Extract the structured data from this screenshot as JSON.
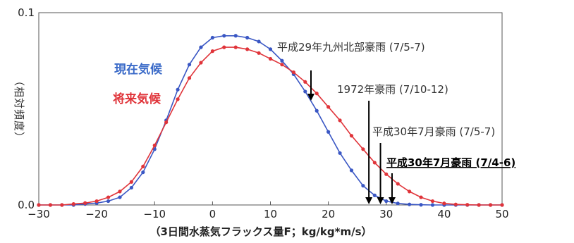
{
  "chart_data": {
    "type": "line",
    "title": "",
    "xlabel": "（3日間水蒸気フラックス量F；kg/kg*m/s）",
    "ylabel": "（相対頻度）",
    "xlim": [
      -30,
      50
    ],
    "ylim": [
      0,
      0.1
    ],
    "xticks": [
      "−30",
      "−20",
      "−10",
      "0",
      "10",
      "20",
      "30",
      "40",
      "50"
    ],
    "yticks": [
      "0.0",
      "0.1"
    ],
    "grid": false,
    "legend_position": "upper-left (inside plot)",
    "series": [
      {
        "name": "現在気候",
        "color": "#3a57c4",
        "x": [
          -30,
          -28,
          -26,
          -24,
          -22,
          -20,
          -18,
          -16,
          -14,
          -12,
          -10,
          -8,
          -6,
          -4,
          -2,
          0,
          2,
          4,
          6,
          8,
          10,
          12,
          14,
          16,
          18,
          20,
          22,
          24,
          26,
          28,
          30,
          32,
          34,
          36,
          38,
          40,
          42,
          44,
          46,
          48,
          50
        ],
        "y": [
          0.0,
          0.0,
          0.0,
          0.0,
          0.0005,
          0.001,
          0.002,
          0.004,
          0.009,
          0.017,
          0.029,
          0.044,
          0.06,
          0.073,
          0.082,
          0.087,
          0.088,
          0.088,
          0.087,
          0.085,
          0.081,
          0.075,
          0.068,
          0.059,
          0.049,
          0.038,
          0.027,
          0.018,
          0.01,
          0.005,
          0.002,
          0.0008,
          0.0003,
          0.0001,
          0.0,
          0.0,
          0.0,
          0.0,
          0.0,
          0.0,
          0.0
        ]
      },
      {
        "name": "将来気候",
        "color": "#e0343a",
        "x": [
          -30,
          -28,
          -26,
          -24,
          -22,
          -20,
          -18,
          -16,
          -14,
          -12,
          -10,
          -8,
          -6,
          -4,
          -2,
          0,
          2,
          4,
          6,
          8,
          10,
          12,
          14,
          16,
          18,
          20,
          22,
          24,
          26,
          28,
          30,
          32,
          34,
          36,
          38,
          40,
          42,
          44,
          46,
          48,
          50
        ],
        "y": [
          0.0,
          0.0,
          0.0,
          0.0005,
          0.001,
          0.002,
          0.004,
          0.007,
          0.012,
          0.02,
          0.031,
          0.043,
          0.055,
          0.066,
          0.074,
          0.08,
          0.082,
          0.082,
          0.081,
          0.079,
          0.076,
          0.073,
          0.069,
          0.064,
          0.058,
          0.051,
          0.044,
          0.036,
          0.029,
          0.022,
          0.016,
          0.011,
          0.007,
          0.004,
          0.002,
          0.0008,
          0.0003,
          0.0001,
          0.0,
          0.0,
          0.0
        ]
      }
    ],
    "annotations": [
      {
        "id": "h29",
        "text": "平成29年九州北部豪雨 (7/5-7)",
        "x": 17
      },
      {
        "id": "s1972",
        "text": "1972年豪雨 (7/10-12)",
        "x": 27
      },
      {
        "id": "h30a",
        "text": "平成30年7月豪雨 (7/5-7)",
        "x": 29
      },
      {
        "id": "h30b",
        "text": "平成30年7月豪雨 (7/4-6)",
        "x": 31
      }
    ]
  }
}
